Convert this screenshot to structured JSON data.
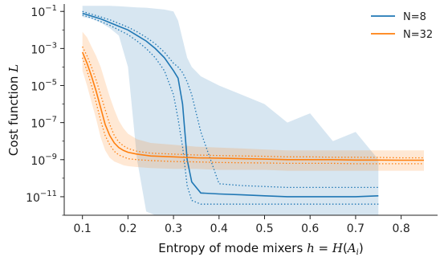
{
  "chart_data": {
    "type": "line",
    "xlabel": "Entropy of mode mixers",
    "xlabel_math": {
      "var": "h",
      "eq": " = ",
      "calH": "H",
      "paren_open": "(",
      "A": "A",
      "sub": "i",
      "paren_close": ")"
    },
    "ylabel": "Cost function",
    "ylabel_math": "L",
    "y_scale": "log",
    "ylim_exp": [
      -12,
      -0.6
    ],
    "xlim": [
      0.06,
      0.88
    ],
    "x_ticks": [
      0.1,
      0.2,
      0.3,
      0.4,
      0.5,
      0.6,
      0.7,
      0.8
    ],
    "y_ticks": [
      {
        "exp": -1,
        "base": "10",
        "sup": "−1"
      },
      {
        "exp": -3,
        "base": "10",
        "sup": "−3"
      },
      {
        "exp": -5,
        "base": "10",
        "sup": "−5"
      },
      {
        "exp": -7,
        "base": "10",
        "sup": "−7"
      },
      {
        "exp": -9,
        "base": "10",
        "sup": "−9"
      },
      {
        "exp": -11,
        "base": "10",
        "sup": "−11"
      }
    ],
    "legend_position": "top-right",
    "grid": false,
    "series": [
      {
        "name": "N=8",
        "color": "#1f77b4",
        "x": [
          0.1,
          0.12,
          0.14,
          0.16,
          0.18,
          0.2,
          0.22,
          0.24,
          0.26,
          0.28,
          0.3,
          0.31,
          0.32,
          0.33,
          0.34,
          0.36,
          0.4,
          0.45,
          0.5,
          0.55,
          0.6,
          0.65,
          0.7,
          0.75
        ],
        "median_exp": [
          -1.1,
          -1.25,
          -1.4,
          -1.6,
          -1.8,
          -2.0,
          -2.3,
          -2.6,
          -3.0,
          -3.5,
          -4.2,
          -4.6,
          -6.0,
          -9.0,
          -10.2,
          -10.8,
          -10.85,
          -10.9,
          -10.95,
          -11.0,
          -11.0,
          -11.0,
          -11.0,
          -10.95
        ],
        "upper_exp": [
          -1.0,
          -1.15,
          -1.3,
          -1.45,
          -1.65,
          -1.85,
          -2.1,
          -2.4,
          -2.75,
          -3.2,
          -3.8,
          -4.0,
          -4.3,
          -4.8,
          -5.5,
          -7.5,
          -10.3,
          -10.4,
          -10.45,
          -10.5,
          -10.5,
          -10.5,
          -10.5,
          -10.5
        ],
        "lower_exp": [
          -1.2,
          -1.35,
          -1.55,
          -1.75,
          -2.0,
          -2.25,
          -2.6,
          -3.0,
          -3.5,
          -4.2,
          -5.5,
          -6.8,
          -8.3,
          -10.4,
          -11.2,
          -11.4,
          -11.4,
          -11.4,
          -11.4,
          -11.4,
          -11.4,
          -11.4,
          -11.4,
          -11.4
        ],
        "band_high_exp": [
          -0.7,
          -0.7,
          -0.7,
          -0.7,
          -0.72,
          -0.75,
          -0.78,
          -0.8,
          -0.85,
          -0.9,
          -1.0,
          -1.5,
          -2.5,
          -3.5,
          -4.0,
          -4.5,
          -5.0,
          -5.5,
          -6.0,
          -7.0,
          -6.5,
          -8.0,
          -7.5,
          -9.0
        ],
        "band_low_exp": [
          -1.3,
          -1.4,
          -1.6,
          -1.9,
          -2.3,
          -4.0,
          -9.0,
          -11.8,
          -12.0,
          -12.0,
          -12.0,
          -12.0,
          -12.0,
          -12.0,
          -12.0,
          -12.0,
          -12.0,
          -12.0,
          -12.0,
          -12.0,
          -12.0,
          -12.0,
          -12.0,
          -12.0
        ]
      },
      {
        "name": "N=32",
        "color": "#ff7f0e",
        "x": [
          0.1,
          0.11,
          0.12,
          0.13,
          0.14,
          0.15,
          0.16,
          0.17,
          0.18,
          0.19,
          0.2,
          0.22,
          0.25,
          0.3,
          0.35,
          0.4,
          0.45,
          0.5,
          0.55,
          0.6,
          0.65,
          0.7,
          0.75,
          0.8,
          0.85
        ],
        "median_exp": [
          -3.2,
          -3.8,
          -4.5,
          -5.3,
          -6.2,
          -7.1,
          -7.7,
          -8.1,
          -8.35,
          -8.5,
          -8.6,
          -8.7,
          -8.8,
          -8.85,
          -8.9,
          -8.92,
          -8.95,
          -8.97,
          -9.0,
          -9.0,
          -9.0,
          -9.02,
          -9.02,
          -9.03,
          -9.03
        ],
        "upper_exp": [
          -2.9,
          -3.4,
          -4.0,
          -4.7,
          -5.5,
          -6.3,
          -7.1,
          -7.7,
          -8.05,
          -8.25,
          -8.4,
          -8.55,
          -8.65,
          -8.7,
          -8.75,
          -8.78,
          -8.8,
          -8.82,
          -8.85,
          -8.85,
          -8.87,
          -8.87,
          -8.88,
          -8.9,
          -8.9
        ],
        "lower_exp": [
          -3.5,
          -4.2,
          -5.0,
          -5.9,
          -6.9,
          -7.7,
          -8.2,
          -8.55,
          -8.75,
          -8.85,
          -8.95,
          -9.0,
          -9.05,
          -9.1,
          -9.12,
          -9.15,
          -9.17,
          -9.18,
          -9.2,
          -9.2,
          -9.2,
          -9.22,
          -9.22,
          -9.22,
          -9.22
        ],
        "band_high_exp": [
          -2.1,
          -2.4,
          -2.9,
          -3.4,
          -4.0,
          -4.8,
          -5.6,
          -6.3,
          -6.9,
          -7.3,
          -7.6,
          -7.9,
          -8.1,
          -8.2,
          -8.3,
          -8.35,
          -8.4,
          -8.45,
          -8.5,
          -8.5,
          -8.5,
          -8.5,
          -8.5,
          -8.5,
          -8.5
        ],
        "band_low_exp": [
          -4.2,
          -5.0,
          -5.9,
          -6.8,
          -7.8,
          -8.5,
          -8.9,
          -9.1,
          -9.2,
          -9.3,
          -9.35,
          -9.4,
          -9.45,
          -9.5,
          -9.5,
          -9.55,
          -9.55,
          -9.55,
          -9.6,
          -9.6,
          -9.6,
          -9.6,
          -9.6,
          -9.6,
          -9.6
        ]
      }
    ]
  }
}
